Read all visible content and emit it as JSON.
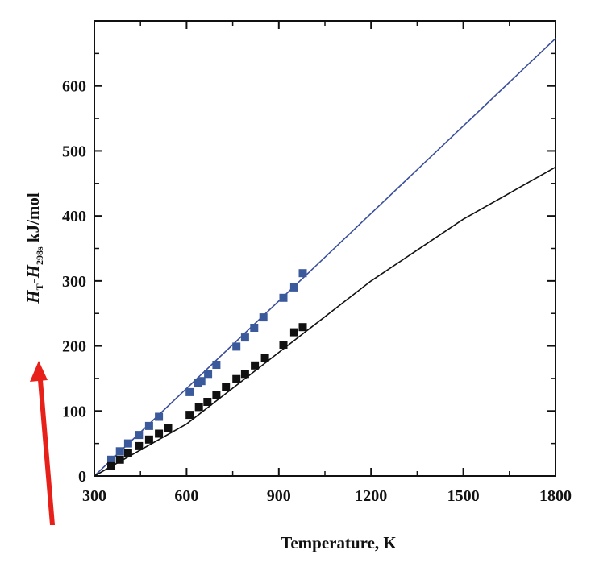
{
  "chart_data": {
    "type": "scatter",
    "xlabel": "Temperature, K",
    "ylabel": {
      "h1": "H",
      "h1_sub": "T",
      "dash": "-",
      "h2": "H",
      "h2_sub": "298s",
      "unit": " kJ/mol"
    },
    "xlim": [
      300,
      1800
    ],
    "ylim": [
      0,
      700
    ],
    "x_ticks": [
      300,
      600,
      900,
      1200,
      1500,
      1800
    ],
    "x_tick_labels": [
      "300",
      "600",
      "900",
      "1200",
      "1500",
      "1800"
    ],
    "y_ticks": [
      0,
      100,
      200,
      300,
      400,
      500,
      600
    ],
    "y_tick_labels": [
      "0",
      "100",
      "200",
      "300",
      "400",
      "500",
      "600"
    ],
    "grid": false,
    "lines": [
      {
        "color": "#3a4e9a",
        "points": [
          [
            300,
            0
          ],
          [
            1800,
            673
          ]
        ]
      },
      {
        "color": "#111111",
        "points": [
          [
            300,
            0
          ],
          [
            600,
            80
          ],
          [
            900,
            190
          ],
          [
            1200,
            300
          ],
          [
            1500,
            395
          ],
          [
            1800,
            475
          ]
        ]
      }
    ],
    "series": [
      {
        "color": "#3a5a9c",
        "points": [
          [
            355,
            25
          ],
          [
            383,
            38
          ],
          [
            410,
            50
          ],
          [
            445,
            63
          ],
          [
            478,
            77
          ],
          [
            510,
            91
          ],
          [
            610,
            129
          ],
          [
            637,
            143
          ],
          [
            648,
            146
          ],
          [
            670,
            157
          ],
          [
            697,
            171
          ],
          [
            762,
            199
          ],
          [
            790,
            213
          ],
          [
            820,
            228
          ],
          [
            850,
            244
          ],
          [
            915,
            274
          ],
          [
            950,
            290
          ],
          [
            978,
            312
          ]
        ]
      },
      {
        "color": "#111111",
        "points": [
          [
            355,
            15
          ],
          [
            383,
            25
          ],
          [
            410,
            35
          ],
          [
            445,
            46
          ],
          [
            478,
            56
          ],
          [
            510,
            65
          ],
          [
            540,
            74
          ],
          [
            610,
            94
          ],
          [
            640,
            106
          ],
          [
            668,
            114
          ],
          [
            697,
            125
          ],
          [
            728,
            137
          ],
          [
            762,
            149
          ],
          [
            790,
            157
          ],
          [
            822,
            170
          ],
          [
            855,
            182
          ],
          [
            915,
            202
          ],
          [
            950,
            221
          ],
          [
            978,
            229
          ]
        ]
      }
    ],
    "annotations": [
      {
        "type": "arrow",
        "color": "#e8201a"
      }
    ]
  }
}
